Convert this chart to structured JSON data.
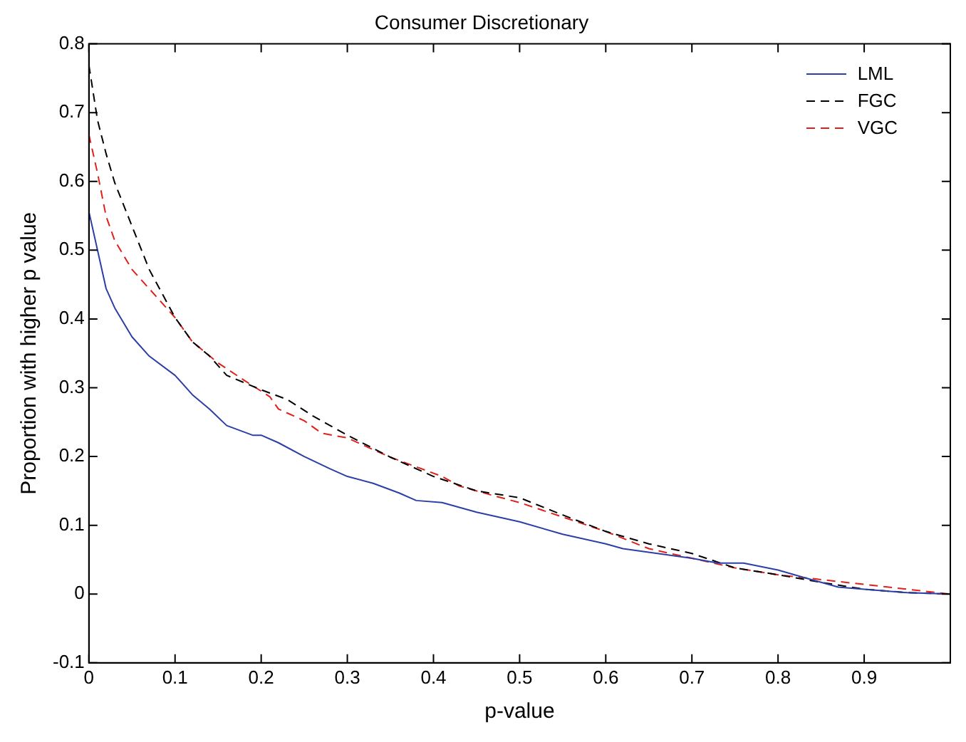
{
  "chart_data": {
    "type": "line",
    "title": "Consumer Discretionary",
    "xlabel": "p-value",
    "ylabel": "Proportion with higher p value",
    "xlim": [
      0,
      1
    ],
    "ylim": [
      -0.1,
      0.8
    ],
    "xticks": [
      0,
      0.1,
      0.2,
      0.3,
      0.4,
      0.5,
      0.6,
      0.7,
      0.8,
      0.9,
      {
        "value": 1,
        "label": null
      }
    ],
    "yticks": [
      -0.1,
      0,
      0.1,
      0.2,
      0.3,
      0.4,
      0.5,
      0.6,
      0.7,
      0.8
    ],
    "grid": false,
    "legend": "top right",
    "marker": "none",
    "series": [
      {
        "name": "LML",
        "color": "#2b3fa6",
        "line_style": "solid",
        "x": [
          0,
          0.01,
          0.02,
          0.03,
          0.05,
          0.07,
          0.1,
          0.12,
          0.14,
          0.16,
          0.19,
          0.2,
          0.22,
          0.25,
          0.28,
          0.3,
          0.33,
          0.36,
          0.38,
          0.41,
          0.45,
          0.5,
          0.55,
          0.6,
          0.62,
          0.66,
          0.7,
          0.73,
          0.76,
          0.8,
          0.83,
          0.87,
          0.9,
          0.95,
          1
        ],
        "values": [
          0.556,
          0.5,
          0.444,
          0.416,
          0.374,
          0.346,
          0.318,
          0.29,
          0.269,
          0.245,
          0.231,
          0.231,
          0.22,
          0.2,
          0.182,
          0.171,
          0.161,
          0.147,
          0.136,
          0.133,
          0.119,
          0.105,
          0.087,
          0.073,
          0.066,
          0.059,
          0.052,
          0.045,
          0.045,
          0.035,
          0.024,
          0.01,
          0.007,
          0.002,
          0
        ]
      },
      {
        "name": "FGC",
        "color": "#000000",
        "line_style": "dashed",
        "x": [
          0,
          0.01,
          0.02,
          0.03,
          0.05,
          0.07,
          0.1,
          0.12,
          0.14,
          0.16,
          0.2,
          0.23,
          0.26,
          0.3,
          0.35,
          0.4,
          0.45,
          0.5,
          0.55,
          0.6,
          0.65,
          0.7,
          0.75,
          0.8,
          0.85,
          0.9,
          0.95,
          1
        ],
        "values": [
          0.769,
          0.689,
          0.64,
          0.598,
          0.535,
          0.472,
          0.402,
          0.367,
          0.346,
          0.318,
          0.297,
          0.283,
          0.259,
          0.231,
          0.199,
          0.171,
          0.15,
          0.14,
          0.115,
          0.091,
          0.073,
          0.059,
          0.038,
          0.028,
          0.017,
          0.007,
          0.002,
          0
        ]
      },
      {
        "name": "VGC",
        "color": "#e0201b",
        "line_style": "dashed",
        "x": [
          0,
          0.01,
          0.02,
          0.03,
          0.05,
          0.07,
          0.1,
          0.12,
          0.15,
          0.18,
          0.21,
          0.22,
          0.25,
          0.27,
          0.3,
          0.33,
          0.35,
          0.38,
          0.41,
          0.43,
          0.47,
          0.5,
          0.55,
          0.6,
          0.65,
          0.7,
          0.75,
          0.8,
          0.85,
          0.9,
          0.95,
          1
        ],
        "values": [
          0.668,
          0.612,
          0.549,
          0.514,
          0.472,
          0.444,
          0.402,
          0.367,
          0.336,
          0.311,
          0.287,
          0.269,
          0.252,
          0.234,
          0.227,
          0.21,
          0.199,
          0.185,
          0.171,
          0.157,
          0.143,
          0.133,
          0.112,
          0.091,
          0.066,
          0.052,
          0.038,
          0.028,
          0.021,
          0.014,
          0.007,
          0
        ]
      }
    ]
  }
}
